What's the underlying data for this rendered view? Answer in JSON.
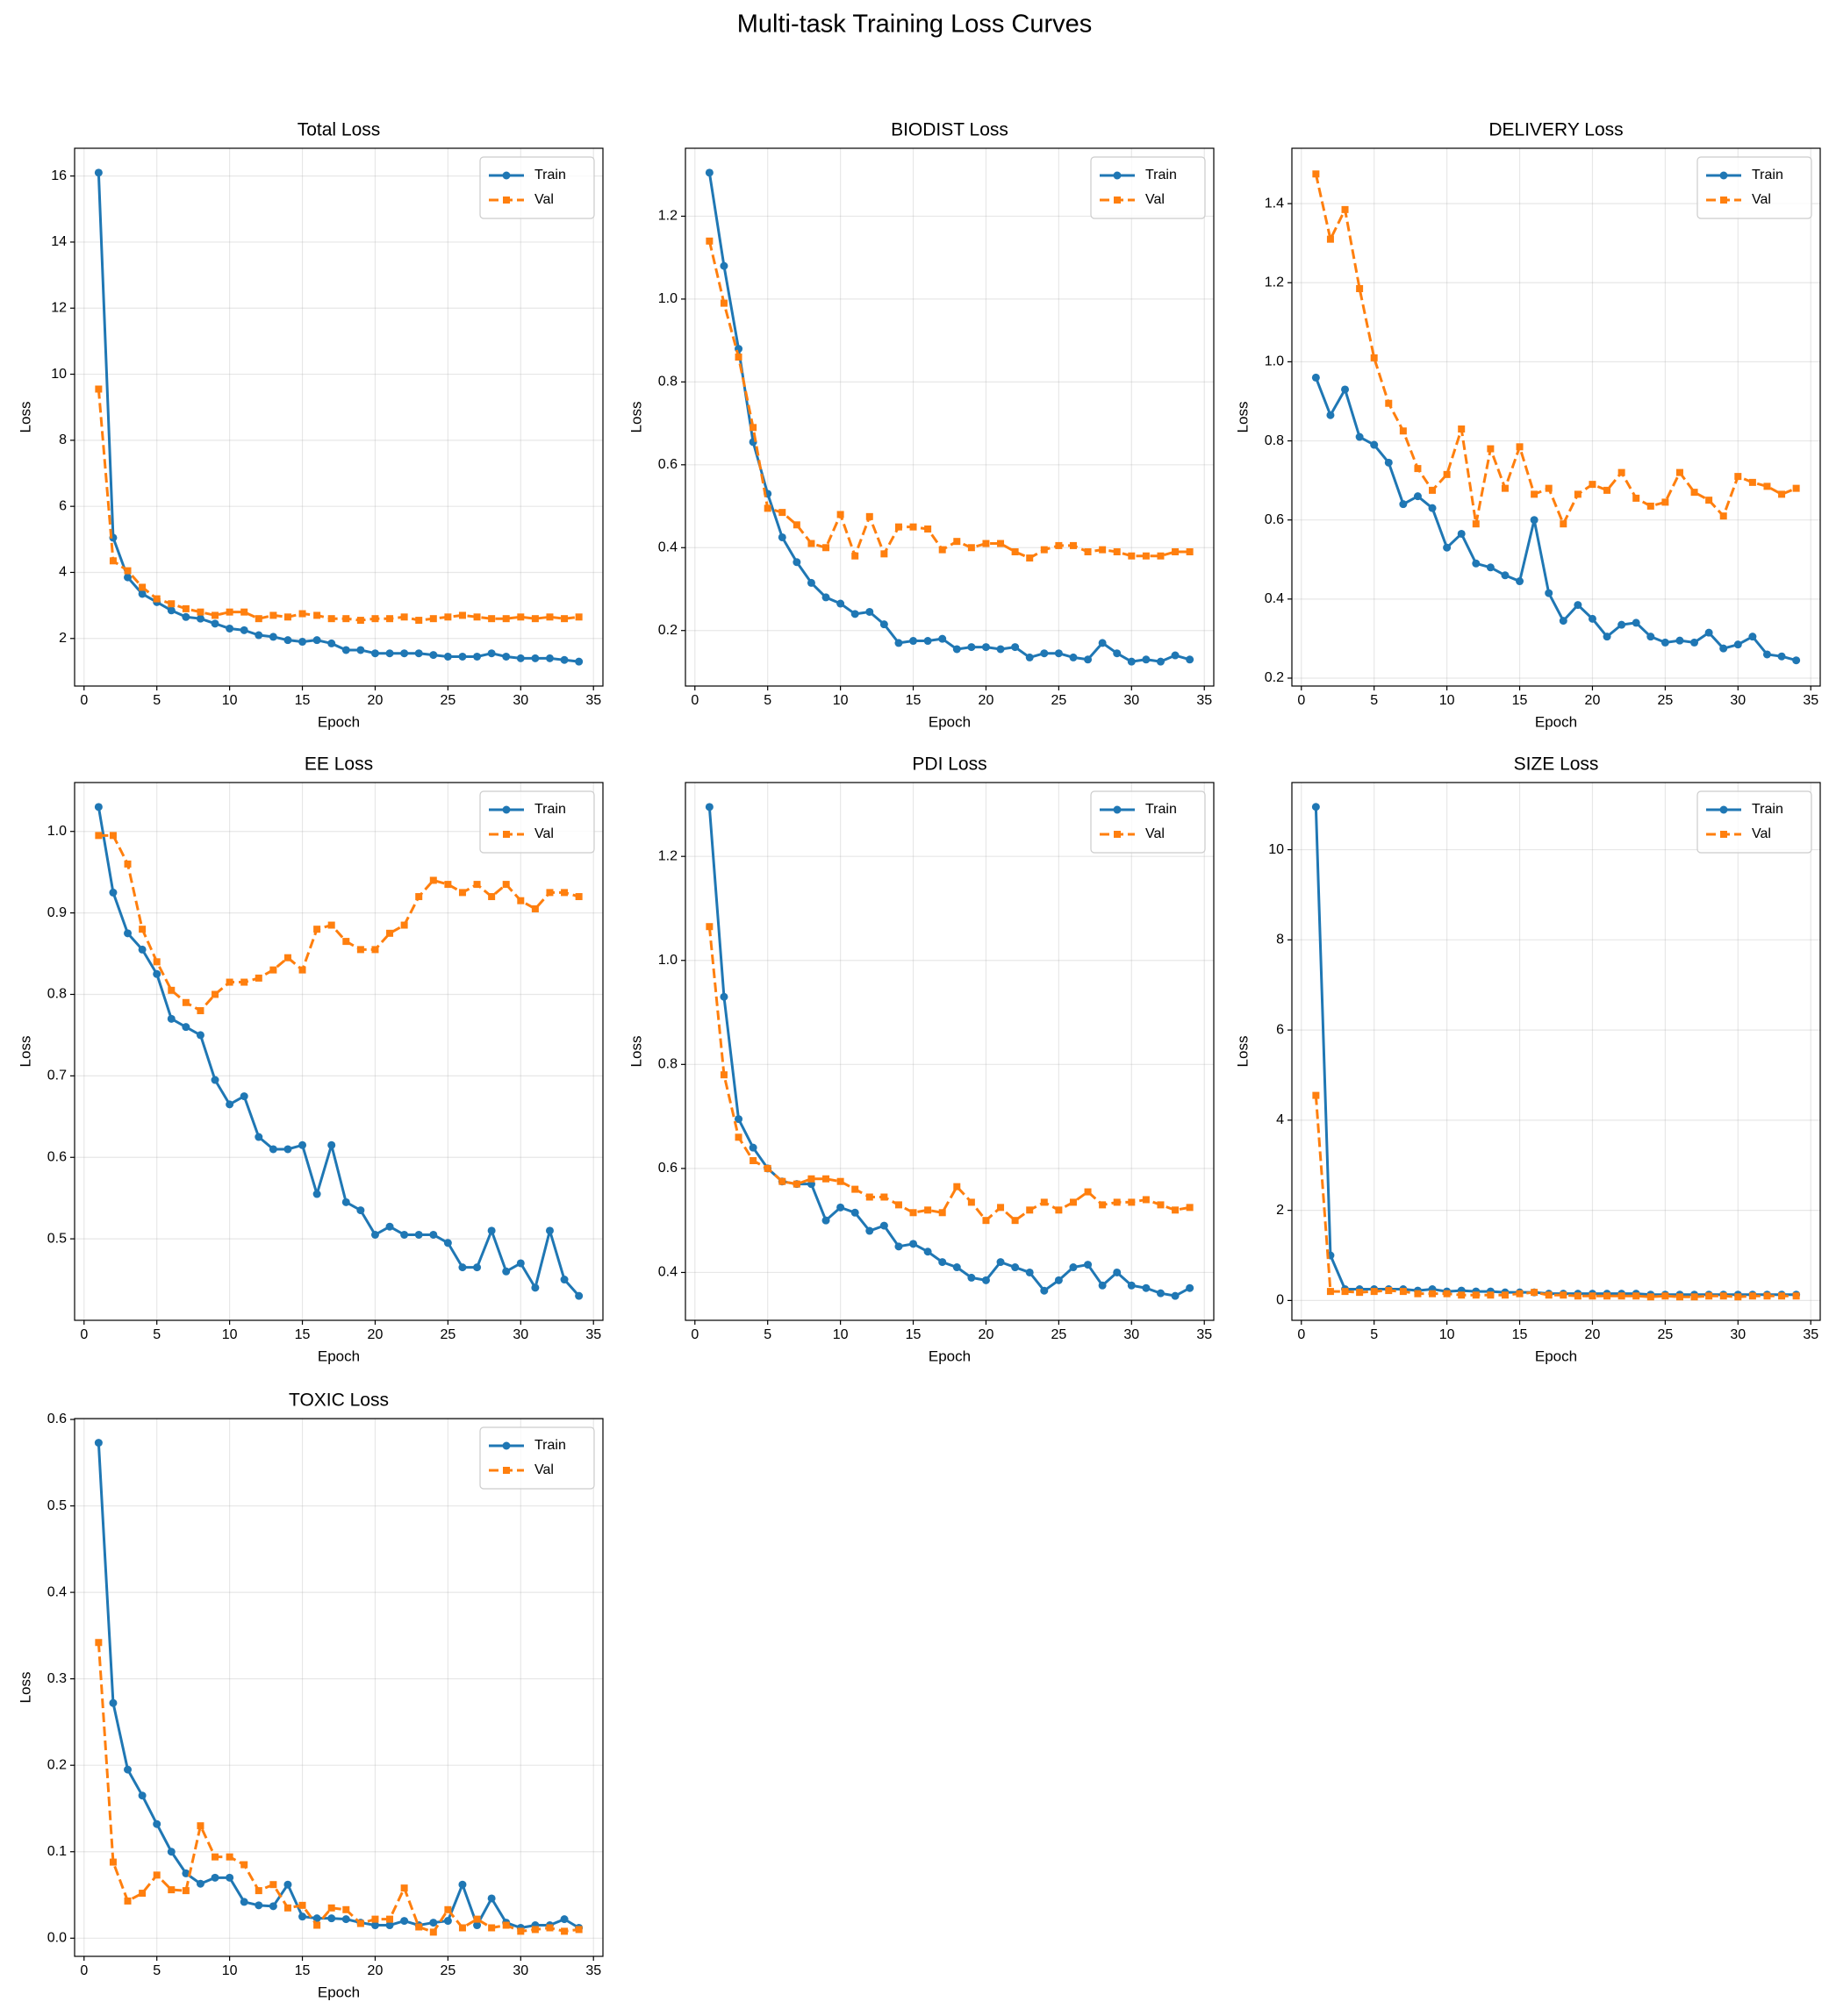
{
  "title": "Multi-task Training Loss Curves",
  "chart_data": [
    {
      "type": "line",
      "title": "Total Loss",
      "xlabel": "Epoch",
      "ylabel": "Loss",
      "grid": true,
      "legend": "upper right",
      "x": [
        1,
        2,
        3,
        4,
        5,
        6,
        7,
        8,
        9,
        10,
        11,
        12,
        13,
        14,
        15,
        16,
        17,
        18,
        19,
        20,
        21,
        22,
        23,
        24,
        25,
        26,
        27,
        28,
        29,
        30,
        31,
        32,
        33,
        34
      ],
      "xlim": [
        -0.65,
        35.65
      ],
      "xticks": [
        0,
        5,
        10,
        15,
        20,
        25,
        30,
        35
      ],
      "ylim": [
        0.56,
        16.84
      ],
      "yticks": [
        2,
        4,
        6,
        8,
        10,
        12,
        14,
        16
      ],
      "series": [
        {
          "name": "Train",
          "color": "#1f77b4",
          "linestyle": "solid",
          "marker": "circle",
          "values": [
            16.1,
            5.05,
            3.85,
            3.35,
            3.1,
            2.85,
            2.65,
            2.6,
            2.45,
            2.3,
            2.25,
            2.1,
            2.05,
            1.95,
            1.9,
            1.95,
            1.85,
            1.65,
            1.65,
            1.55,
            1.55,
            1.55,
            1.55,
            1.5,
            1.45,
            1.45,
            1.45,
            1.55,
            1.45,
            1.4,
            1.4,
            1.4,
            1.35,
            1.3
          ]
        },
        {
          "name": "Val",
          "color": "#ff7f0e",
          "linestyle": "dashed",
          "marker": "square",
          "values": [
            9.55,
            4.35,
            4.05,
            3.55,
            3.2,
            3.05,
            2.9,
            2.8,
            2.7,
            2.8,
            2.8,
            2.6,
            2.7,
            2.65,
            2.75,
            2.7,
            2.6,
            2.6,
            2.55,
            2.6,
            2.6,
            2.65,
            2.55,
            2.6,
            2.65,
            2.7,
            2.65,
            2.6,
            2.6,
            2.65,
            2.6,
            2.65,
            2.6,
            2.65
          ]
        }
      ]
    },
    {
      "type": "line",
      "title": "BIODIST Loss",
      "xlabel": "Epoch",
      "ylabel": "Loss",
      "grid": true,
      "legend": "upper right",
      "x": [
        1,
        2,
        3,
        4,
        5,
        6,
        7,
        8,
        9,
        10,
        11,
        12,
        13,
        14,
        15,
        16,
        17,
        18,
        19,
        20,
        21,
        22,
        23,
        24,
        25,
        26,
        27,
        28,
        29,
        30,
        31,
        32,
        33,
        34
      ],
      "xlim": [
        -0.65,
        35.65
      ],
      "xticks": [
        0,
        5,
        10,
        15,
        20,
        25,
        30,
        35
      ],
      "ylim": [
        0.066,
        1.364
      ],
      "yticks": [
        0.2,
        0.4,
        0.6,
        0.8,
        {
          "value": 1,
          "label": "1.0"
        },
        1.2
      ],
      "series": [
        {
          "name": "Train",
          "color": "#1f77b4",
          "linestyle": "solid",
          "marker": "circle",
          "values": [
            1.305,
            1.08,
            0.88,
            0.655,
            0.53,
            0.425,
            0.365,
            0.315,
            0.28,
            0.265,
            0.24,
            0.245,
            0.215,
            0.17,
            0.175,
            0.175,
            0.18,
            0.155,
            0.16,
            0.16,
            0.155,
            0.16,
            0.135,
            0.145,
            0.145,
            0.135,
            0.13,
            0.17,
            0.145,
            0.125,
            0.13,
            0.125,
            0.14,
            0.13
          ]
        },
        {
          "name": "Val",
          "color": "#ff7f0e",
          "linestyle": "dashed",
          "marker": "square",
          "values": [
            1.14,
            0.99,
            0.86,
            0.69,
            0.495,
            0.485,
            0.455,
            0.41,
            0.4,
            0.48,
            0.38,
            0.475,
            0.385,
            0.45,
            0.45,
            0.445,
            0.395,
            0.415,
            0.4,
            0.41,
            0.41,
            0.39,
            0.375,
            0.395,
            0.405,
            0.405,
            0.39,
            0.395,
            0.39,
            0.38,
            0.38,
            0.38,
            0.39,
            0.39
          ]
        }
      ]
    },
    {
      "type": "line",
      "title": "DELIVERY Loss",
      "xlabel": "Epoch",
      "ylabel": "Loss",
      "grid": true,
      "legend": "upper right",
      "x": [
        1,
        2,
        3,
        4,
        5,
        6,
        7,
        8,
        9,
        10,
        11,
        12,
        13,
        14,
        15,
        16,
        17,
        18,
        19,
        20,
        21,
        22,
        23,
        24,
        25,
        26,
        27,
        28,
        29,
        30,
        31,
        32,
        33,
        34
      ],
      "xlim": [
        -0.65,
        35.65
      ],
      "xticks": [
        0,
        5,
        10,
        15,
        20,
        25,
        30,
        35
      ],
      "ylim": [
        0.18,
        1.54
      ],
      "yticks": [
        0.2,
        0.4,
        0.6,
        0.8,
        {
          "value": 1,
          "label": "1.0"
        },
        1.2,
        1.4
      ],
      "series": [
        {
          "name": "Train",
          "color": "#1f77b4",
          "linestyle": "solid",
          "marker": "circle",
          "values": [
            0.96,
            0.865,
            0.93,
            0.81,
            0.79,
            0.745,
            0.64,
            0.66,
            0.63,
            0.53,
            0.565,
            0.49,
            0.48,
            0.46,
            0.445,
            0.6,
            0.415,
            0.345,
            0.385,
            0.35,
            0.305,
            0.335,
            0.34,
            0.305,
            0.29,
            0.295,
            0.29,
            0.315,
            0.275,
            0.285,
            0.305,
            0.26,
            0.255,
            0.245
          ]
        },
        {
          "name": "Val",
          "color": "#ff7f0e",
          "linestyle": "dashed",
          "marker": "square",
          "values": [
            1.475,
            1.31,
            1.385,
            1.185,
            1.01,
            0.895,
            0.825,
            0.73,
            0.675,
            0.715,
            0.83,
            0.59,
            0.78,
            0.68,
            0.785,
            0.665,
            0.68,
            0.59,
            0.665,
            0.69,
            0.675,
            0.72,
            0.655,
            0.635,
            0.645,
            0.72,
            0.67,
            0.65,
            0.61,
            0.71,
            0.695,
            0.685,
            0.665,
            0.68
          ]
        }
      ]
    },
    {
      "type": "line",
      "title": "EE Loss",
      "xlabel": "Epoch",
      "ylabel": "Loss",
      "grid": true,
      "legend": "upper right",
      "x": [
        1,
        2,
        3,
        4,
        5,
        6,
        7,
        8,
        9,
        10,
        11,
        12,
        13,
        14,
        15,
        16,
        17,
        18,
        19,
        20,
        21,
        22,
        23,
        24,
        25,
        26,
        27,
        28,
        29,
        30,
        31,
        32,
        33,
        34
      ],
      "xlim": [
        -0.65,
        35.65
      ],
      "xticks": [
        0,
        5,
        10,
        15,
        20,
        25,
        30,
        35
      ],
      "ylim": [
        0.4,
        1.06
      ],
      "yticks": [
        0.5,
        0.6,
        0.7,
        0.8,
        0.9,
        {
          "value": 1,
          "label": "1.0"
        }
      ],
      "series": [
        {
          "name": "Train",
          "color": "#1f77b4",
          "linestyle": "solid",
          "marker": "circle",
          "values": [
            1.03,
            0.925,
            0.875,
            0.855,
            0.825,
            0.77,
            0.76,
            0.75,
            0.695,
            0.665,
            0.675,
            0.625,
            0.61,
            0.61,
            0.615,
            0.555,
            0.615,
            0.545,
            0.535,
            0.505,
            0.515,
            0.505,
            0.505,
            0.505,
            0.495,
            0.465,
            0.465,
            0.51,
            0.46,
            0.47,
            0.44,
            0.51,
            0.45,
            0.43
          ]
        },
        {
          "name": "Val",
          "color": "#ff7f0e",
          "linestyle": "dashed",
          "marker": "square",
          "values": [
            0.995,
            0.995,
            0.96,
            0.88,
            0.84,
            0.805,
            0.79,
            0.78,
            0.8,
            0.815,
            0.815,
            0.82,
            0.83,
            0.845,
            0.83,
            0.88,
            0.885,
            0.865,
            0.855,
            0.855,
            0.875,
            0.885,
            0.92,
            0.94,
            0.935,
            0.925,
            0.935,
            0.92,
            0.935,
            0.915,
            0.905,
            0.925,
            0.925,
            0.92
          ]
        }
      ]
    },
    {
      "type": "line",
      "title": "PDI Loss",
      "xlabel": "Epoch",
      "ylabel": "Loss",
      "grid": true,
      "legend": "upper right",
      "x": [
        1,
        2,
        3,
        4,
        5,
        6,
        7,
        8,
        9,
        10,
        11,
        12,
        13,
        14,
        15,
        16,
        17,
        18,
        19,
        20,
        21,
        22,
        23,
        24,
        25,
        26,
        27,
        28,
        29,
        30,
        31,
        32,
        33,
        34
      ],
      "xlim": [
        -0.65,
        35.65
      ],
      "xticks": [
        0,
        5,
        10,
        15,
        20,
        25,
        30,
        35
      ],
      "ylim": [
        0.308,
        1.342
      ],
      "yticks": [
        0.4,
        0.6,
        0.8,
        {
          "value": 1,
          "label": "1.0"
        },
        1.2
      ],
      "series": [
        {
          "name": "Train",
          "color": "#1f77b4",
          "linestyle": "solid",
          "marker": "circle",
          "values": [
            1.295,
            0.93,
            0.695,
            0.64,
            0.6,
            0.575,
            0.57,
            0.57,
            0.5,
            0.525,
            0.515,
            0.48,
            0.49,
            0.45,
            0.455,
            0.44,
            0.42,
            0.41,
            0.39,
            0.385,
            0.42,
            0.41,
            0.4,
            0.365,
            0.385,
            0.41,
            0.415,
            0.375,
            0.4,
            0.375,
            0.37,
            0.36,
            0.355,
            0.37
          ]
        },
        {
          "name": "Val",
          "color": "#ff7f0e",
          "linestyle": "dashed",
          "marker": "square",
          "values": [
            1.065,
            0.78,
            0.66,
            0.615,
            0.6,
            0.575,
            0.57,
            0.58,
            0.58,
            0.575,
            0.56,
            0.545,
            0.545,
            0.53,
            0.515,
            0.52,
            0.515,
            0.565,
            0.535,
            0.5,
            0.525,
            0.5,
            0.52,
            0.535,
            0.52,
            0.535,
            0.555,
            0.53,
            0.535,
            0.535,
            0.54,
            0.53,
            0.52,
            0.525
          ]
        }
      ]
    },
    {
      "type": "line",
      "title": "SIZE Loss",
      "xlabel": "Epoch",
      "ylabel": "Loss",
      "grid": true,
      "legend": "upper right",
      "x": [
        1,
        2,
        3,
        4,
        5,
        6,
        7,
        8,
        9,
        10,
        11,
        12,
        13,
        14,
        15,
        16,
        17,
        18,
        19,
        20,
        21,
        22,
        23,
        24,
        25,
        26,
        27,
        28,
        29,
        30,
        31,
        32,
        33,
        34
      ],
      "xlim": [
        -0.65,
        35.65
      ],
      "xticks": [
        0,
        5,
        10,
        15,
        20,
        25,
        30,
        35
      ],
      "ylim": [
        -0.44,
        11.49
      ],
      "yticks": [
        0,
        2,
        4,
        6,
        8,
        10
      ],
      "series": [
        {
          "name": "Train",
          "color": "#1f77b4",
          "linestyle": "solid",
          "marker": "circle",
          "values": [
            10.95,
            1.0,
            0.25,
            0.25,
            0.25,
            0.25,
            0.25,
            0.22,
            0.25,
            0.2,
            0.22,
            0.2,
            0.2,
            0.18,
            0.18,
            0.18,
            0.15,
            0.15,
            0.15,
            0.15,
            0.15,
            0.15,
            0.15,
            0.13,
            0.13,
            0.13,
            0.13,
            0.13,
            0.13,
            0.13,
            0.13,
            0.13,
            0.13,
            0.13
          ]
        },
        {
          "name": "Val",
          "color": "#ff7f0e",
          "linestyle": "dashed",
          "marker": "square",
          "values": [
            4.55,
            0.2,
            0.2,
            0.18,
            0.2,
            0.22,
            0.2,
            0.15,
            0.15,
            0.15,
            0.12,
            0.12,
            0.12,
            0.12,
            0.15,
            0.18,
            0.12,
            0.12,
            0.1,
            0.1,
            0.1,
            0.1,
            0.1,
            0.08,
            0.1,
            0.08,
            0.08,
            0.1,
            0.1,
            0.08,
            0.1,
            0.1,
            0.1,
            0.1
          ]
        }
      ]
    },
    {
      "type": "line",
      "title": "TOXIC Loss",
      "xlabel": "Epoch",
      "ylabel": "Loss",
      "grid": true,
      "legend": "upper right",
      "x": [
        1,
        2,
        3,
        4,
        5,
        6,
        7,
        8,
        9,
        10,
        11,
        12,
        13,
        14,
        15,
        16,
        17,
        18,
        19,
        20,
        21,
        22,
        23,
        24,
        25,
        26,
        27,
        28,
        29,
        30,
        31,
        32,
        33,
        34
      ],
      "xlim": [
        -0.65,
        35.65
      ],
      "xticks": [
        0,
        5,
        10,
        15,
        20,
        25,
        30,
        35
      ],
      "ylim": [
        -0.021,
        0.601
      ],
      "yticks": [
        {
          "value": 0,
          "label": "0.0"
        },
        0.1,
        0.2,
        0.3,
        0.4,
        0.5,
        0.6
      ],
      "series": [
        {
          "name": "Train",
          "color": "#1f77b4",
          "linestyle": "solid",
          "marker": "circle",
          "values": [
            0.573,
            0.272,
            0.195,
            0.165,
            0.132,
            0.1,
            0.075,
            0.063,
            0.07,
            0.07,
            0.042,
            0.038,
            0.037,
            0.062,
            0.025,
            0.023,
            0.023,
            0.022,
            0.018,
            0.015,
            0.015,
            0.02,
            0.015,
            0.018,
            0.02,
            0.062,
            0.015,
            0.046,
            0.018,
            0.012,
            0.015,
            0.015,
            0.022,
            0.012
          ]
        },
        {
          "name": "Val",
          "color": "#ff7f0e",
          "linestyle": "dashed",
          "marker": "square",
          "values": [
            0.342,
            0.088,
            0.043,
            0.052,
            0.073,
            0.056,
            0.055,
            0.13,
            0.094,
            0.094,
            0.085,
            0.055,
            0.062,
            0.035,
            0.038,
            0.015,
            0.035,
            0.033,
            0.017,
            0.022,
            0.022,
            0.058,
            0.013,
            0.007,
            0.033,
            0.012,
            0.022,
            0.012,
            0.015,
            0.008,
            0.01,
            0.012,
            0.008,
            0.01
          ]
        }
      ]
    }
  ]
}
